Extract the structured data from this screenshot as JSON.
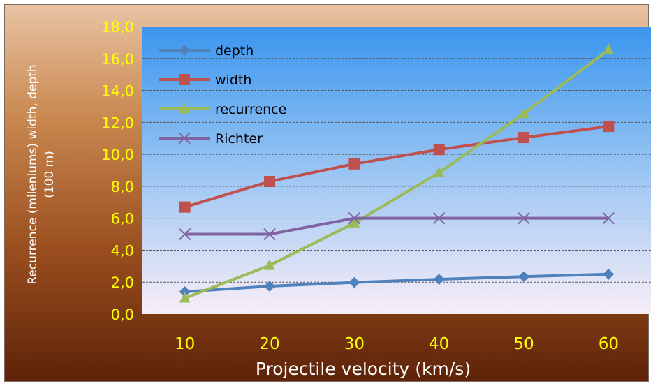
{
  "chart_data": {
    "type": "line",
    "x": [
      10,
      20,
      30,
      40,
      50,
      60
    ],
    "x_tick_labels": [
      "10",
      "20",
      "30",
      "40",
      "50",
      "60"
    ],
    "y_tick_labels": [
      "0,0",
      "2,0",
      "4,0",
      "6,0",
      "8,0",
      "10,0",
      "12,0",
      "14,0",
      "16,0",
      "18,0"
    ],
    "ylim": [
      0,
      18
    ],
    "xlabel": "Projectile velocity (km/s)",
    "ylabel_line1": "Recurrence  (mileniums) width, depth",
    "ylabel_line2": "(100 m)",
    "grid": "horizontal dashed",
    "legend_position": "top-left",
    "series": [
      {
        "name": "depth",
        "values": [
          1.4,
          1.75,
          1.98,
          2.18,
          2.35,
          2.5
        ],
        "color": "#4f81bd",
        "marker": "diamond"
      },
      {
        "name": "width",
        "values": [
          6.7,
          8.3,
          9.4,
          10.3,
          11.05,
          11.75
        ],
        "color": "#c0504d",
        "marker": "square"
      },
      {
        "name": "recurrence",
        "values": [
          1.0,
          3.05,
          5.7,
          8.85,
          12.55,
          16.55
        ],
        "color": "#9bbb59",
        "marker": "triangle"
      },
      {
        "name": "Richter",
        "values": [
          5.0,
          5.0,
          6.0,
          6.0,
          6.0,
          6.0
        ],
        "color": "#8064a2",
        "marker": "x"
      }
    ]
  }
}
